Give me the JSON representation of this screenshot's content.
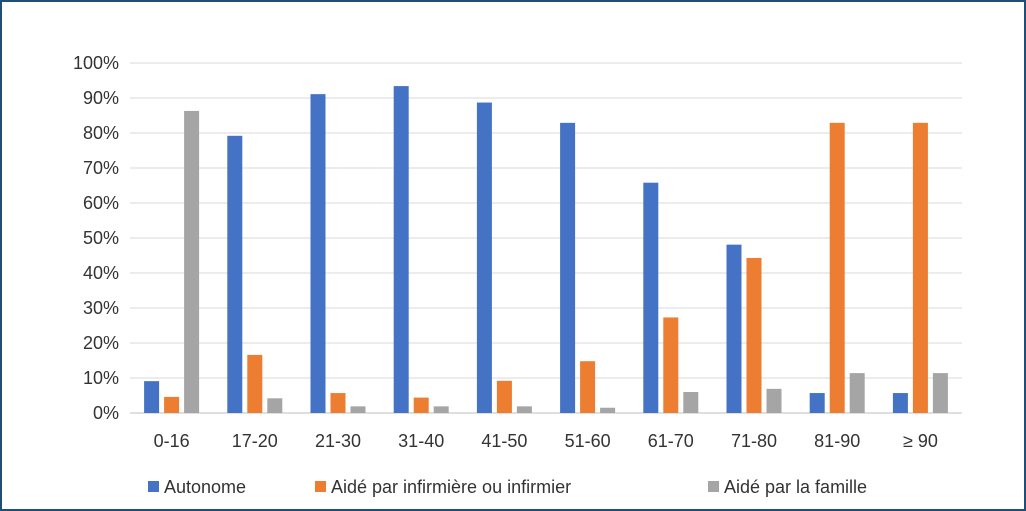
{
  "chart_data": {
    "type": "bar",
    "title": "",
    "xlabel": "",
    "ylabel": "",
    "ylim": [
      0,
      100
    ],
    "y_unit": "%",
    "yticks": [
      "0%",
      "10%",
      "20%",
      "30%",
      "40%",
      "50%",
      "60%",
      "70%",
      "80%",
      "90%",
      "100%"
    ],
    "grid": true,
    "legend_position": "bottom",
    "categories": [
      "0-16",
      "17-20",
      "21-30",
      "31-40",
      "41-50",
      "51-60",
      "61-70",
      "71-80",
      "81-90",
      "≥ 90"
    ],
    "series": [
      {
        "name": "Autonome",
        "color": "#4472C4",
        "values": [
          9.1,
          79.2,
          91.1,
          93.4,
          88.7,
          82.9,
          65.8,
          48.1,
          5.7,
          5.7
        ]
      },
      {
        "name": "Aidé par infirmière ou infirmier",
        "color": "#ED7D31",
        "values": [
          4.6,
          16.6,
          5.7,
          4.4,
          9.2,
          14.8,
          27.3,
          44.3,
          82.9,
          82.9
        ]
      },
      {
        "name": "Aidé par la famille",
        "color": "#A5A5A5",
        "values": [
          86.3,
          4.2,
          1.9,
          1.9,
          1.9,
          1.5,
          6.0,
          6.9,
          11.4,
          11.4
        ]
      }
    ]
  }
}
